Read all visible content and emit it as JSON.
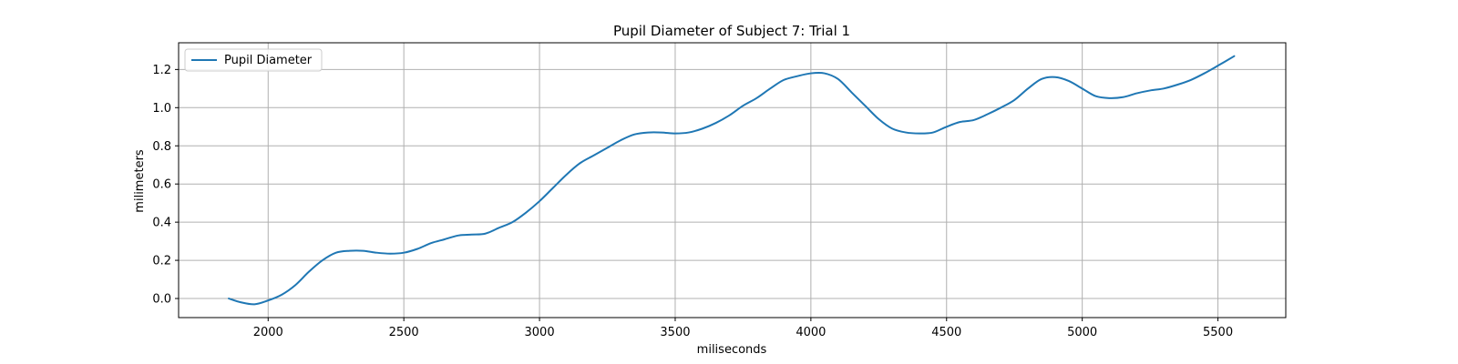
{
  "chart_data": {
    "type": "line",
    "title": "Pupil Diameter of Subject 7: Trial 1",
    "xlabel": "miliseconds",
    "ylabel": "milimeters",
    "xlim": [
      1670,
      5750
    ],
    "ylim": [
      -0.1,
      1.34
    ],
    "xticks": [
      2000,
      2500,
      3000,
      3500,
      4000,
      4500,
      5000,
      5500
    ],
    "yticks": [
      0.0,
      0.2,
      0.4,
      0.6,
      0.8,
      1.0,
      1.2
    ],
    "xtick_labels": [
      "2000",
      "2500",
      "3000",
      "3500",
      "4000",
      "4500",
      "5000",
      "5500"
    ],
    "ytick_labels": [
      "0.0",
      "0.2",
      "0.4",
      "0.6",
      "0.8",
      "1.0",
      "1.2"
    ],
    "grid": true,
    "legend_position": "top-left",
    "series": [
      {
        "name": "Pupil Diameter",
        "color": "#1f77b4",
        "x": [
          1855,
          1900,
          1950,
          2000,
          2050,
          2100,
          2150,
          2200,
          2250,
          2300,
          2350,
          2400,
          2450,
          2500,
          2550,
          2600,
          2650,
          2700,
          2750,
          2800,
          2850,
          2900,
          2950,
          3000,
          3050,
          3100,
          3150,
          3200,
          3250,
          3300,
          3350,
          3400,
          3450,
          3500,
          3550,
          3600,
          3650,
          3700,
          3750,
          3800,
          3850,
          3900,
          3950,
          4000,
          4050,
          4100,
          4150,
          4200,
          4250,
          4300,
          4350,
          4400,
          4450,
          4500,
          4550,
          4600,
          4650,
          4700,
          4750,
          4800,
          4850,
          4900,
          4950,
          5000,
          5050,
          5100,
          5150,
          5200,
          5250,
          5300,
          5350,
          5400,
          5450,
          5500,
          5560
        ],
        "y": [
          0.0,
          -0.02,
          -0.03,
          -0.01,
          0.02,
          0.07,
          0.14,
          0.2,
          0.24,
          0.25,
          0.25,
          0.24,
          0.235,
          0.24,
          0.26,
          0.29,
          0.31,
          0.33,
          0.335,
          0.34,
          0.37,
          0.4,
          0.45,
          0.51,
          0.58,
          0.65,
          0.71,
          0.75,
          0.79,
          0.83,
          0.86,
          0.87,
          0.87,
          0.865,
          0.87,
          0.89,
          0.92,
          0.96,
          1.01,
          1.05,
          1.1,
          1.145,
          1.165,
          1.18,
          1.18,
          1.15,
          1.08,
          1.01,
          0.94,
          0.89,
          0.87,
          0.865,
          0.87,
          0.9,
          0.925,
          0.935,
          0.965,
          1.0,
          1.04,
          1.1,
          1.15,
          1.16,
          1.14,
          1.1,
          1.06,
          1.05,
          1.055,
          1.075,
          1.09,
          1.1,
          1.12,
          1.145,
          1.18,
          1.22,
          1.27
        ]
      }
    ]
  }
}
